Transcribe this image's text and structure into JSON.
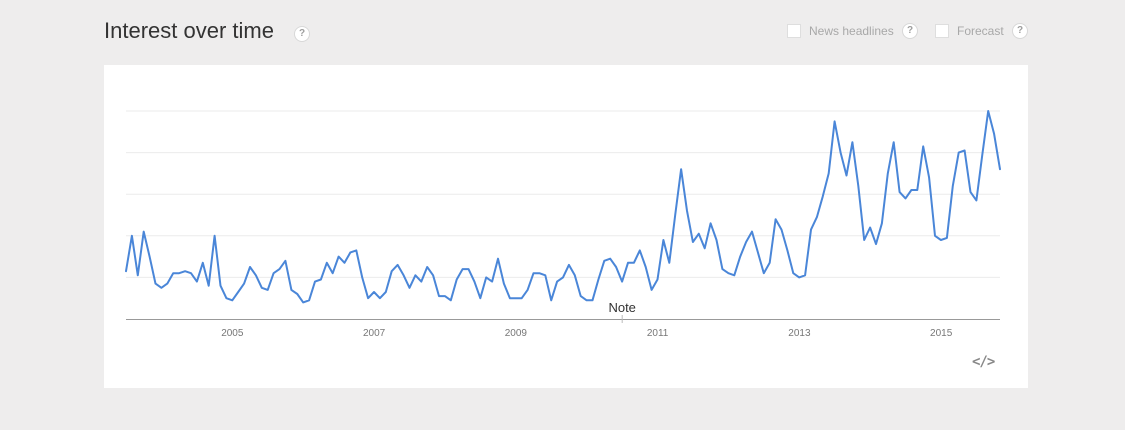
{
  "header": {
    "title": "Interest over time",
    "help_glyph": "?",
    "options": [
      {
        "label": "News headlines",
        "checked": false
      },
      {
        "label": "Forecast",
        "checked": false
      }
    ]
  },
  "embed": {
    "icon": "embed-code-icon",
    "glyph": "</>"
  },
  "colors": {
    "series": "#4a86d8",
    "grid": "#ebebeb",
    "axis": "#999999"
  },
  "chart_data": {
    "type": "line",
    "title": "Interest over time",
    "xlabel": "",
    "ylabel": "",
    "x_range": [
      2004.0,
      2016.33
    ],
    "ylim": [
      0,
      100
    ],
    "x_ticks": [
      2005,
      2007,
      2009,
      2011,
      2013,
      2015
    ],
    "x_tick_labels": [
      "2005",
      "2007",
      "2009",
      "2011",
      "2013",
      "2015"
    ],
    "grid": true,
    "annotations": [
      {
        "label": "Note",
        "x": 2011.0
      }
    ],
    "x_start": "2004-01",
    "x_step": "month",
    "series": [
      {
        "name": "",
        "values": [
          23,
          40,
          21,
          42,
          30,
          17,
          15,
          17,
          22,
          22,
          23,
          22,
          18,
          27,
          16,
          40,
          16,
          10,
          9,
          13,
          17,
          25,
          21,
          15,
          14,
          22,
          24,
          28,
          14,
          12,
          8,
          9,
          18,
          19,
          27,
          22,
          30,
          27,
          32,
          33,
          20,
          10,
          13,
          10,
          13,
          23,
          26,
          21,
          15,
          21,
          18,
          25,
          21,
          11,
          11,
          9,
          19,
          24,
          24,
          18,
          10,
          20,
          18,
          29,
          17,
          10,
          10,
          10,
          14,
          22,
          22,
          21,
          9,
          18,
          20,
          26,
          21,
          11,
          9,
          9,
          19,
          28,
          29,
          25,
          18,
          27,
          27,
          33,
          25,
          14,
          19,
          38,
          27,
          50,
          72,
          52,
          37,
          41,
          34,
          46,
          38,
          24,
          22,
          21,
          30,
          37,
          42,
          32,
          22,
          27,
          48,
          43,
          33,
          22,
          20,
          21,
          43,
          49,
          59,
          70,
          95,
          80,
          69,
          85,
          64,
          38,
          44,
          36,
          46,
          70,
          85,
          61,
          58,
          62,
          62,
          83,
          68,
          40,
          38,
          39,
          64,
          80,
          81,
          61,
          57,
          79,
          100,
          89,
          72
        ]
      }
    ]
  }
}
